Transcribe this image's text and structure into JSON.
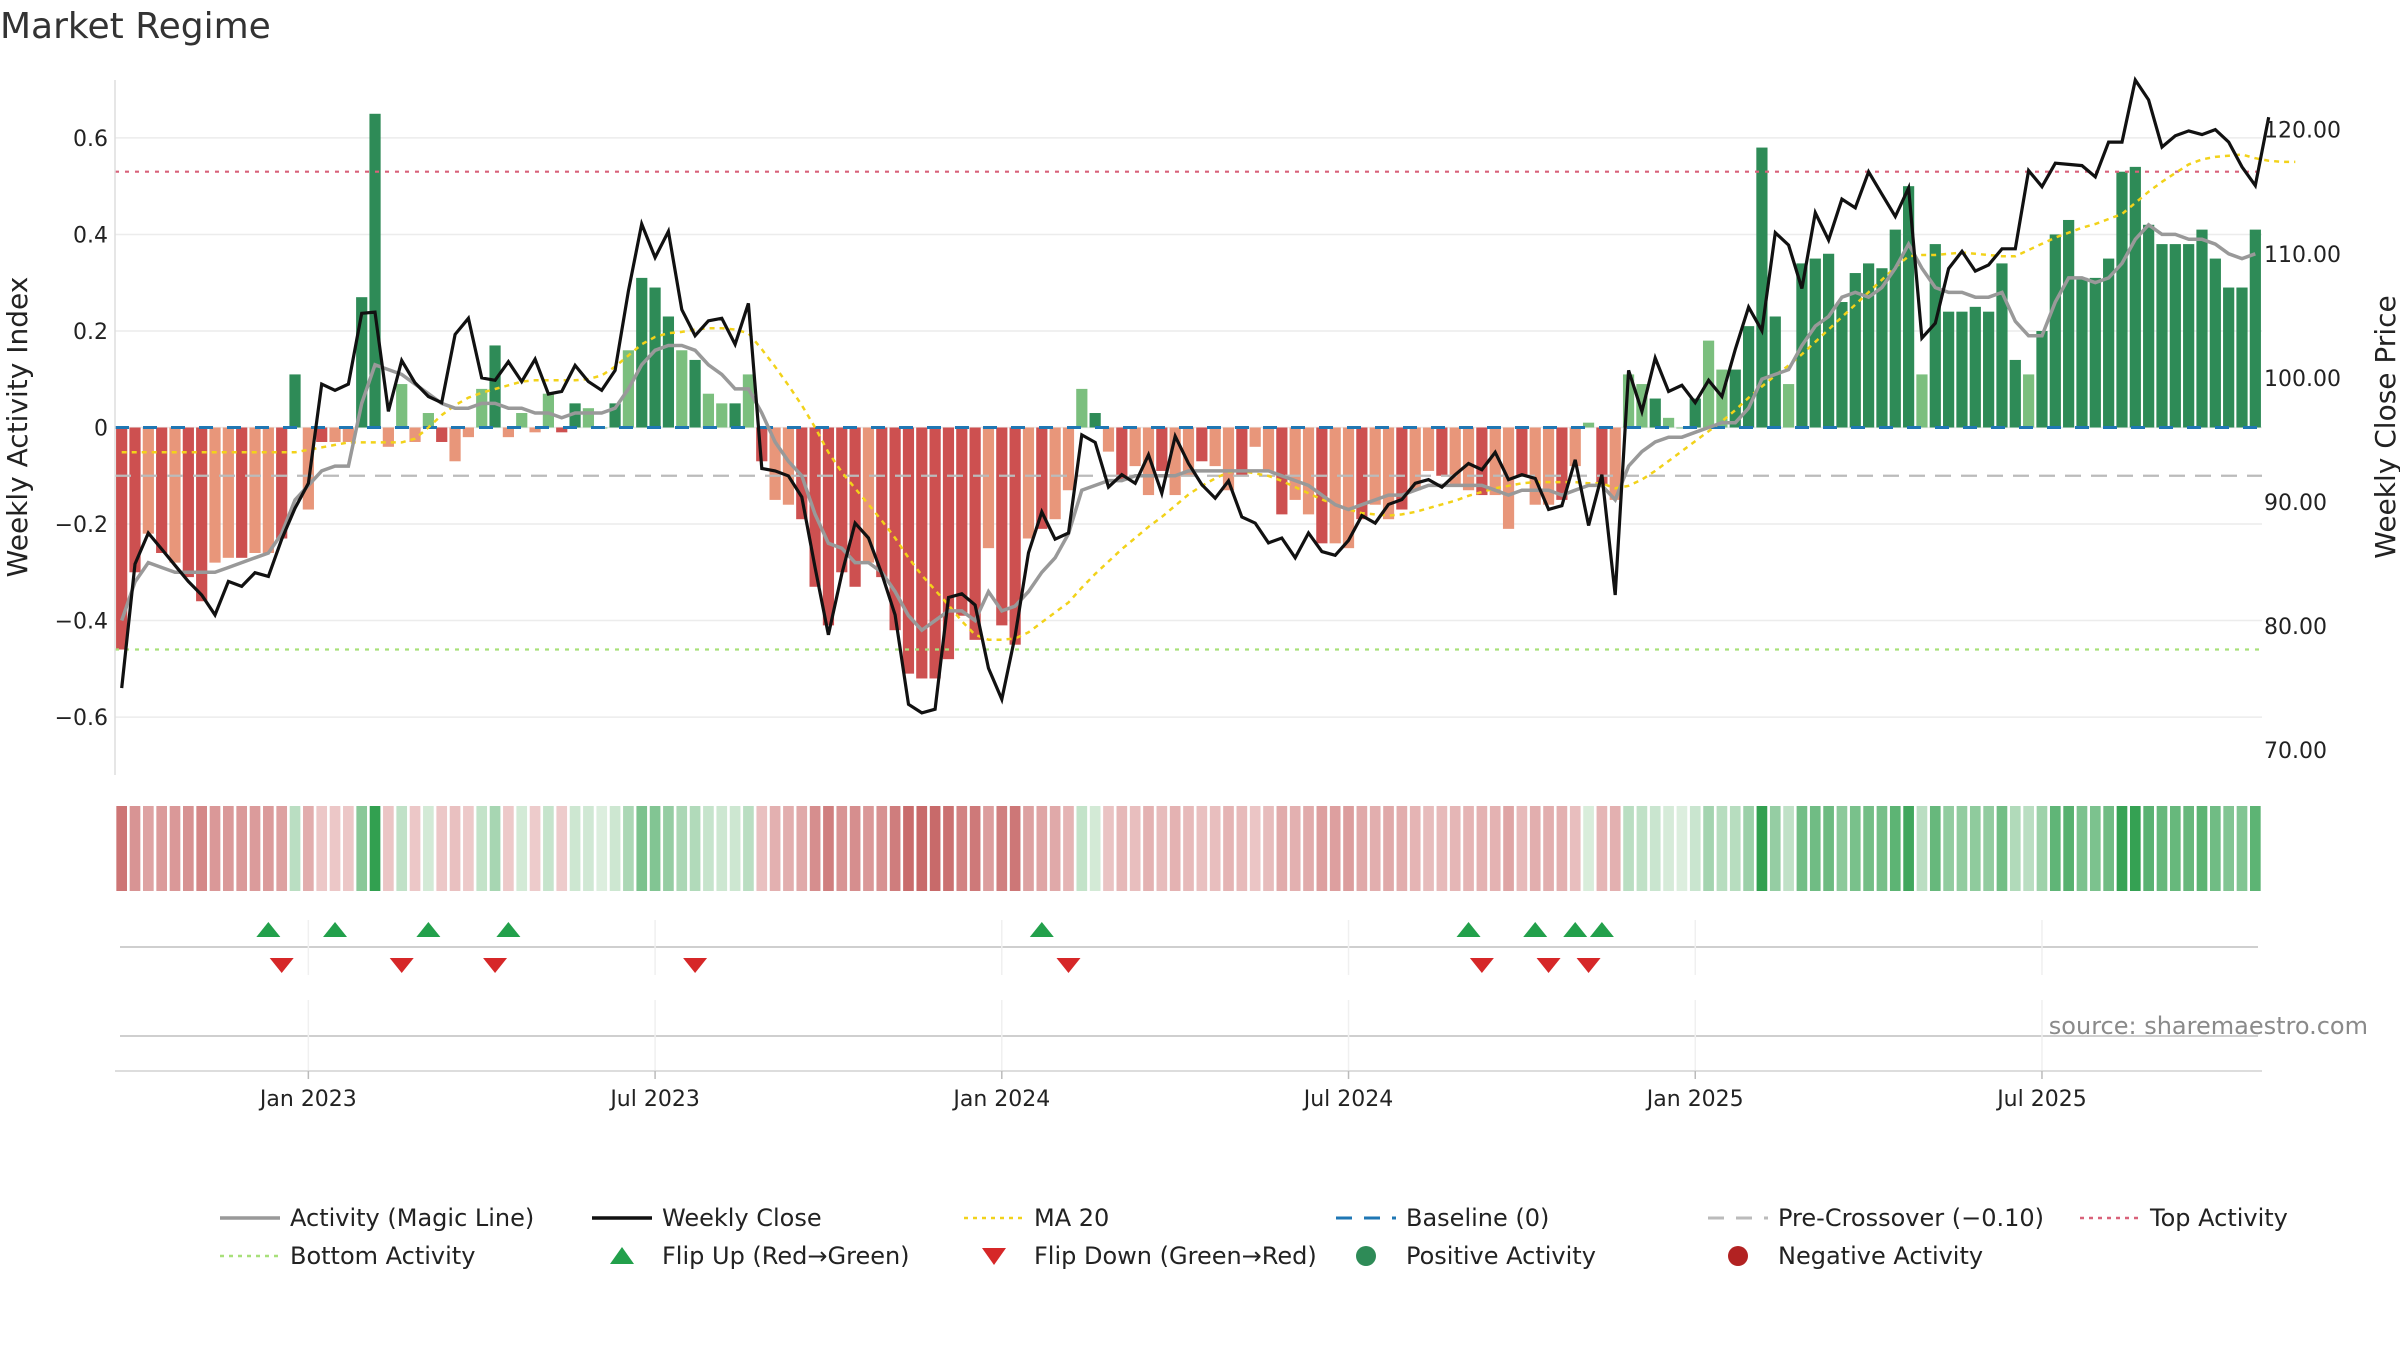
{
  "chart_data": {
    "type": "bar",
    "title": "Market Regime",
    "ylabel_left": "Weekly Activity Index",
    "ylabel_right": "Weekly Close Price",
    "source": "source: sharemaestro.com",
    "left_ylim": [
      -0.72,
      0.72
    ],
    "right_ylim": [
      68.0,
      124.0
    ],
    "left_ticks": [
      0.6,
      0.4,
      0.2,
      0,
      -0.2,
      -0.4,
      -0.6
    ],
    "left_tick_labels": [
      "0.6",
      "0.4",
      "0.2",
      "0",
      "−0.2",
      "−0.4",
      "−0.6"
    ],
    "right_ticks": [
      120,
      110,
      100,
      90,
      80,
      70
    ],
    "right_tick_labels": [
      "120.00",
      "110.00",
      "100.00",
      "90.00",
      "80.00",
      "70.00"
    ],
    "x_tick_labels": [
      "Jan 2023",
      "Jul 2023",
      "Jan 2024",
      "Jul 2024",
      "Jan 2025",
      "Jul 2025"
    ],
    "x_tick_weeks": [
      14.5,
      40.5,
      66.5,
      92.5,
      118.5,
      144.5
    ],
    "top_activity": 0.53,
    "bottom_activity": -0.46,
    "pre_crossover": -0.1,
    "baseline": 0,
    "colors": {
      "pos_strong": "#2e8b57",
      "pos_weak": "#7bbf7e",
      "neg_strong": "#cd5050",
      "neg_weak": "#e8967a",
      "close": "#111111",
      "magic": "#999999",
      "ma20": "#f2d21a",
      "baseline": "#1f77b4",
      "pre": "#bbbbbb",
      "top": "#d9627a",
      "bottom": "#a8e07a",
      "flip_up": "#22a04b",
      "flip_down": "#d62728"
    },
    "activity": [
      -0.46,
      -0.3,
      -0.22,
      -0.26,
      -0.28,
      -0.31,
      -0.36,
      -0.28,
      -0.27,
      -0.27,
      -0.26,
      -0.26,
      -0.23,
      0.11,
      -0.17,
      -0.03,
      -0.03,
      -0.03,
      0.27,
      0.65,
      -0.04,
      0.09,
      -0.03,
      0.03,
      -0.03,
      -0.07,
      -0.02,
      0.08,
      0.17,
      -0.02,
      0.03,
      -0.01,
      0.07,
      -0.01,
      0.05,
      0.04,
      -0.0,
      0.05,
      0.16,
      0.31,
      0.29,
      0.23,
      0.16,
      0.14,
      0.07,
      0.05,
      0.05,
      0.11,
      -0.07,
      -0.15,
      -0.16,
      -0.19,
      -0.33,
      -0.41,
      -0.3,
      -0.33,
      -0.28,
      -0.31,
      -0.42,
      -0.51,
      -0.52,
      -0.52,
      -0.48,
      -0.39,
      -0.44,
      -0.25,
      -0.41,
      -0.45,
      -0.23,
      -0.21,
      -0.19,
      -0.13,
      0.08,
      0.03,
      -0.05,
      -0.11,
      -0.08,
      -0.14,
      -0.09,
      -0.14,
      -0.1,
      -0.07,
      -0.08,
      -0.13,
      -0.1,
      -0.04,
      -0.09,
      -0.18,
      -0.15,
      -0.18,
      -0.24,
      -0.24,
      -0.25,
      -0.19,
      -0.16,
      -0.19,
      -0.17,
      -0.13,
      -0.09,
      -0.1,
      -0.12,
      -0.13,
      -0.14,
      -0.14,
      -0.21,
      -0.1,
      -0.16,
      -0.16,
      -0.15,
      -0.08,
      0.01,
      -0.12,
      -0.15,
      0.11,
      0.09,
      0.06,
      0.02,
      0.0,
      0.06,
      0.18,
      0.12,
      0.12,
      0.21,
      0.58,
      0.23,
      0.09,
      0.34,
      0.35,
      0.36,
      0.26,
      0.32,
      0.34,
      0.33,
      0.41,
      0.5,
      0.11,
      0.38,
      0.24,
      0.24,
      0.25,
      0.24,
      0.34,
      0.14,
      0.11,
      0.2,
      0.4,
      0.43,
      0.31,
      0.31,
      0.35,
      0.53,
      0.54,
      0.42,
      0.38,
      0.38,
      0.38,
      0.41,
      0.35,
      0.29,
      0.29,
      0.41
    ],
    "close": [
      75.0,
      85.0,
      87.5,
      86.2,
      84.9,
      83.6,
      82.5,
      80.9,
      83.6,
      83.2,
      84.3,
      84.0,
      87.0,
      89.5,
      91.5,
      99.5,
      99.0,
      99.5,
      105.2,
      105.3,
      97.3,
      101.4,
      99.6,
      98.5,
      98.0,
      103.5,
      104.8,
      100.0,
      99.8,
      101.3,
      99.7,
      101.5,
      98.7,
      98.9,
      101.0,
      99.7,
      99.0,
      100.6,
      107.0,
      112.4,
      109.7,
      111.8,
      105.5,
      103.4,
      104.6,
      104.8,
      102.7,
      106.0,
      92.7,
      92.5,
      92.1,
      90.4,
      84.7,
      79.3,
      84.2,
      88.3,
      87.1,
      84.2,
      80.9,
      73.7,
      73.0,
      73.3,
      82.3,
      82.6,
      81.7,
      76.6,
      74.1,
      79.2,
      85.9,
      89.2,
      87.0,
      87.5,
      95.4,
      94.8,
      91.2,
      92.2,
      91.5,
      93.8,
      90.7,
      95.3,
      93.1,
      91.4,
      90.3,
      91.7,
      88.8,
      88.3,
      86.7,
      87.1,
      85.5,
      87.5,
      86.0,
      85.7,
      86.9,
      88.9,
      88.3,
      89.8,
      90.2,
      91.5,
      91.8,
      91.2,
      92.2,
      93.1,
      92.6,
      94.0,
      91.8,
      92.2,
      91.9,
      89.4,
      89.7,
      93.4,
      88.1,
      92.2,
      82.5,
      100.6,
      97.3,
      101.6,
      98.9,
      99.4,
      98.0,
      99.8,
      98.5,
      102.3,
      105.7,
      103.8,
      111.7,
      110.7,
      107.2,
      113.3,
      111.1,
      114.4,
      113.7,
      116.6,
      114.8,
      113.0,
      115.3,
      103.2,
      104.4,
      108.8,
      110.2,
      108.6,
      109.1,
      110.4,
      110.4,
      116.7,
      115.4,
      117.3,
      117.2,
      117.1,
      116.2,
      119.0,
      119.0,
      124.0,
      122.4,
      118.6,
      119.5,
      119.9,
      119.6,
      120.0,
      119.0,
      117.0,
      115.5,
      121.0
    ],
    "magic": [
      -0.4,
      -0.32,
      -0.28,
      -0.29,
      -0.3,
      -0.3,
      -0.3,
      -0.3,
      -0.29,
      -0.28,
      -0.27,
      -0.26,
      -0.22,
      -0.15,
      -0.12,
      -0.09,
      -0.08,
      -0.08,
      0.05,
      0.13,
      0.12,
      0.11,
      0.09,
      0.07,
      0.05,
      0.04,
      0.04,
      0.05,
      0.05,
      0.04,
      0.04,
      0.03,
      0.03,
      0.02,
      0.03,
      0.03,
      0.03,
      0.04,
      0.08,
      0.13,
      0.16,
      0.17,
      0.17,
      0.16,
      0.13,
      0.11,
      0.08,
      0.08,
      0.03,
      -0.03,
      -0.07,
      -0.1,
      -0.18,
      -0.24,
      -0.25,
      -0.28,
      -0.28,
      -0.3,
      -0.34,
      -0.39,
      -0.42,
      -0.4,
      -0.38,
      -0.38,
      -0.4,
      -0.34,
      -0.38,
      -0.37,
      -0.34,
      -0.3,
      -0.27,
      -0.22,
      -0.13,
      -0.12,
      -0.11,
      -0.11,
      -0.1,
      -0.1,
      -0.1,
      -0.1,
      -0.09,
      -0.09,
      -0.09,
      -0.09,
      -0.09,
      -0.09,
      -0.09,
      -0.1,
      -0.11,
      -0.12,
      -0.14,
      -0.16,
      -0.17,
      -0.16,
      -0.15,
      -0.14,
      -0.14,
      -0.13,
      -0.12,
      -0.12,
      -0.12,
      -0.12,
      -0.12,
      -0.13,
      -0.14,
      -0.13,
      -0.13,
      -0.13,
      -0.14,
      -0.13,
      -0.12,
      -0.12,
      -0.15,
      -0.08,
      -0.05,
      -0.03,
      -0.02,
      -0.02,
      -0.01,
      0.0,
      0.01,
      0.01,
      0.04,
      0.1,
      0.11,
      0.12,
      0.17,
      0.21,
      0.23,
      0.27,
      0.28,
      0.27,
      0.29,
      0.33,
      0.38,
      0.33,
      0.29,
      0.28,
      0.28,
      0.27,
      0.27,
      0.28,
      0.22,
      0.19,
      0.19,
      0.26,
      0.31,
      0.31,
      0.3,
      0.31,
      0.34,
      0.39,
      0.42,
      0.4,
      0.4,
      0.39,
      0.39,
      0.38,
      0.36,
      0.35,
      0.36
    ],
    "ma20": [
      94.0,
      94.0,
      94.0,
      94.0,
      94.0,
      94.0,
      94.0,
      94.0,
      94.0,
      94.0,
      94.0,
      94.0,
      94.0,
      94.0,
      94.2,
      94.4,
      94.6,
      94.8,
      94.8,
      94.8,
      94.8,
      94.8,
      95.1,
      96.0,
      97.0,
      97.8,
      98.4,
      98.8,
      99.1,
      99.4,
      99.7,
      99.8,
      99.8,
      99.8,
      99.8,
      99.9,
      100.2,
      100.9,
      101.8,
      102.7,
      103.3,
      103.6,
      103.7,
      103.9,
      104.0,
      104.0,
      103.9,
      103.6,
      102.3,
      100.9,
      99.4,
      97.8,
      96.0,
      94.0,
      92.4,
      91.1,
      89.8,
      88.5,
      87.1,
      85.5,
      84.1,
      82.9,
      81.7,
      80.4,
      79.3,
      78.9,
      78.9,
      79.0,
      79.5,
      80.3,
      81.1,
      81.9,
      83.1,
      84.2,
      85.2,
      86.2,
      87.1,
      88.0,
      88.8,
      89.7,
      90.6,
      91.3,
      91.9,
      92.4,
      92.5,
      92.3,
      92.1,
      91.7,
      91.2,
      90.7,
      90.2,
      89.8,
      89.4,
      89.1,
      89.0,
      88.9,
      89.0,
      89.2,
      89.5,
      89.8,
      90.1,
      90.5,
      90.8,
      91.1,
      91.3,
      91.5,
      91.6,
      91.6,
      91.6,
      91.6,
      91.5,
      91.5,
      91.1,
      91.3,
      91.8,
      92.5,
      93.3,
      94.1,
      94.9,
      95.7,
      96.5,
      97.4,
      98.4,
      99.3,
      100.2,
      101.0,
      101.9,
      102.9,
      103.9,
      104.9,
      105.9,
      106.9,
      107.9,
      108.9,
      109.8,
      109.9,
      109.9,
      110.0,
      110.1,
      110.0,
      109.9,
      109.8,
      109.8,
      110.3,
      110.8,
      111.3,
      111.7,
      112.1,
      112.4,
      112.8,
      113.2,
      114.1,
      115.0,
      115.8,
      116.5,
      117.2,
      117.6,
      117.8,
      117.9,
      118.0,
      117.7,
      117.5,
      117.4,
      117.4
    ],
    "flips_up": [
      11,
      16,
      23,
      29,
      69,
      101,
      106,
      109,
      111
    ],
    "flips_down": [
      12,
      21,
      28,
      43,
      71,
      102,
      107,
      110
    ],
    "legend": [
      {
        "label": "Activity (Magic Line)",
        "kind": "line",
        "color": "#999999"
      },
      {
        "label": "Weekly Close",
        "kind": "line",
        "color": "#111111"
      },
      {
        "label": "MA 20",
        "kind": "dotted",
        "color": "#f2d21a"
      },
      {
        "label": "Baseline (0)",
        "kind": "dashed",
        "color": "#1f77b4"
      },
      {
        "label": "Pre-Crossover (−0.10)",
        "kind": "dashed",
        "color": "#bbbbbb"
      },
      {
        "label": "Top Activity",
        "kind": "dotted",
        "color": "#d9627a"
      },
      {
        "label": "Bottom Activity",
        "kind": "dotted",
        "color": "#a8e07a"
      },
      {
        "label": "Flip Up (Red→Green)",
        "kind": "tri-up",
        "color": "#22a04b"
      },
      {
        "label": "Flip Down (Green→Red)",
        "kind": "tri-down",
        "color": "#d62728"
      },
      {
        "label": "Positive Activity",
        "kind": "dot",
        "color": "#2e8b57"
      },
      {
        "label": "Negative Activity",
        "kind": "dot",
        "color": "#b22222"
      }
    ]
  }
}
